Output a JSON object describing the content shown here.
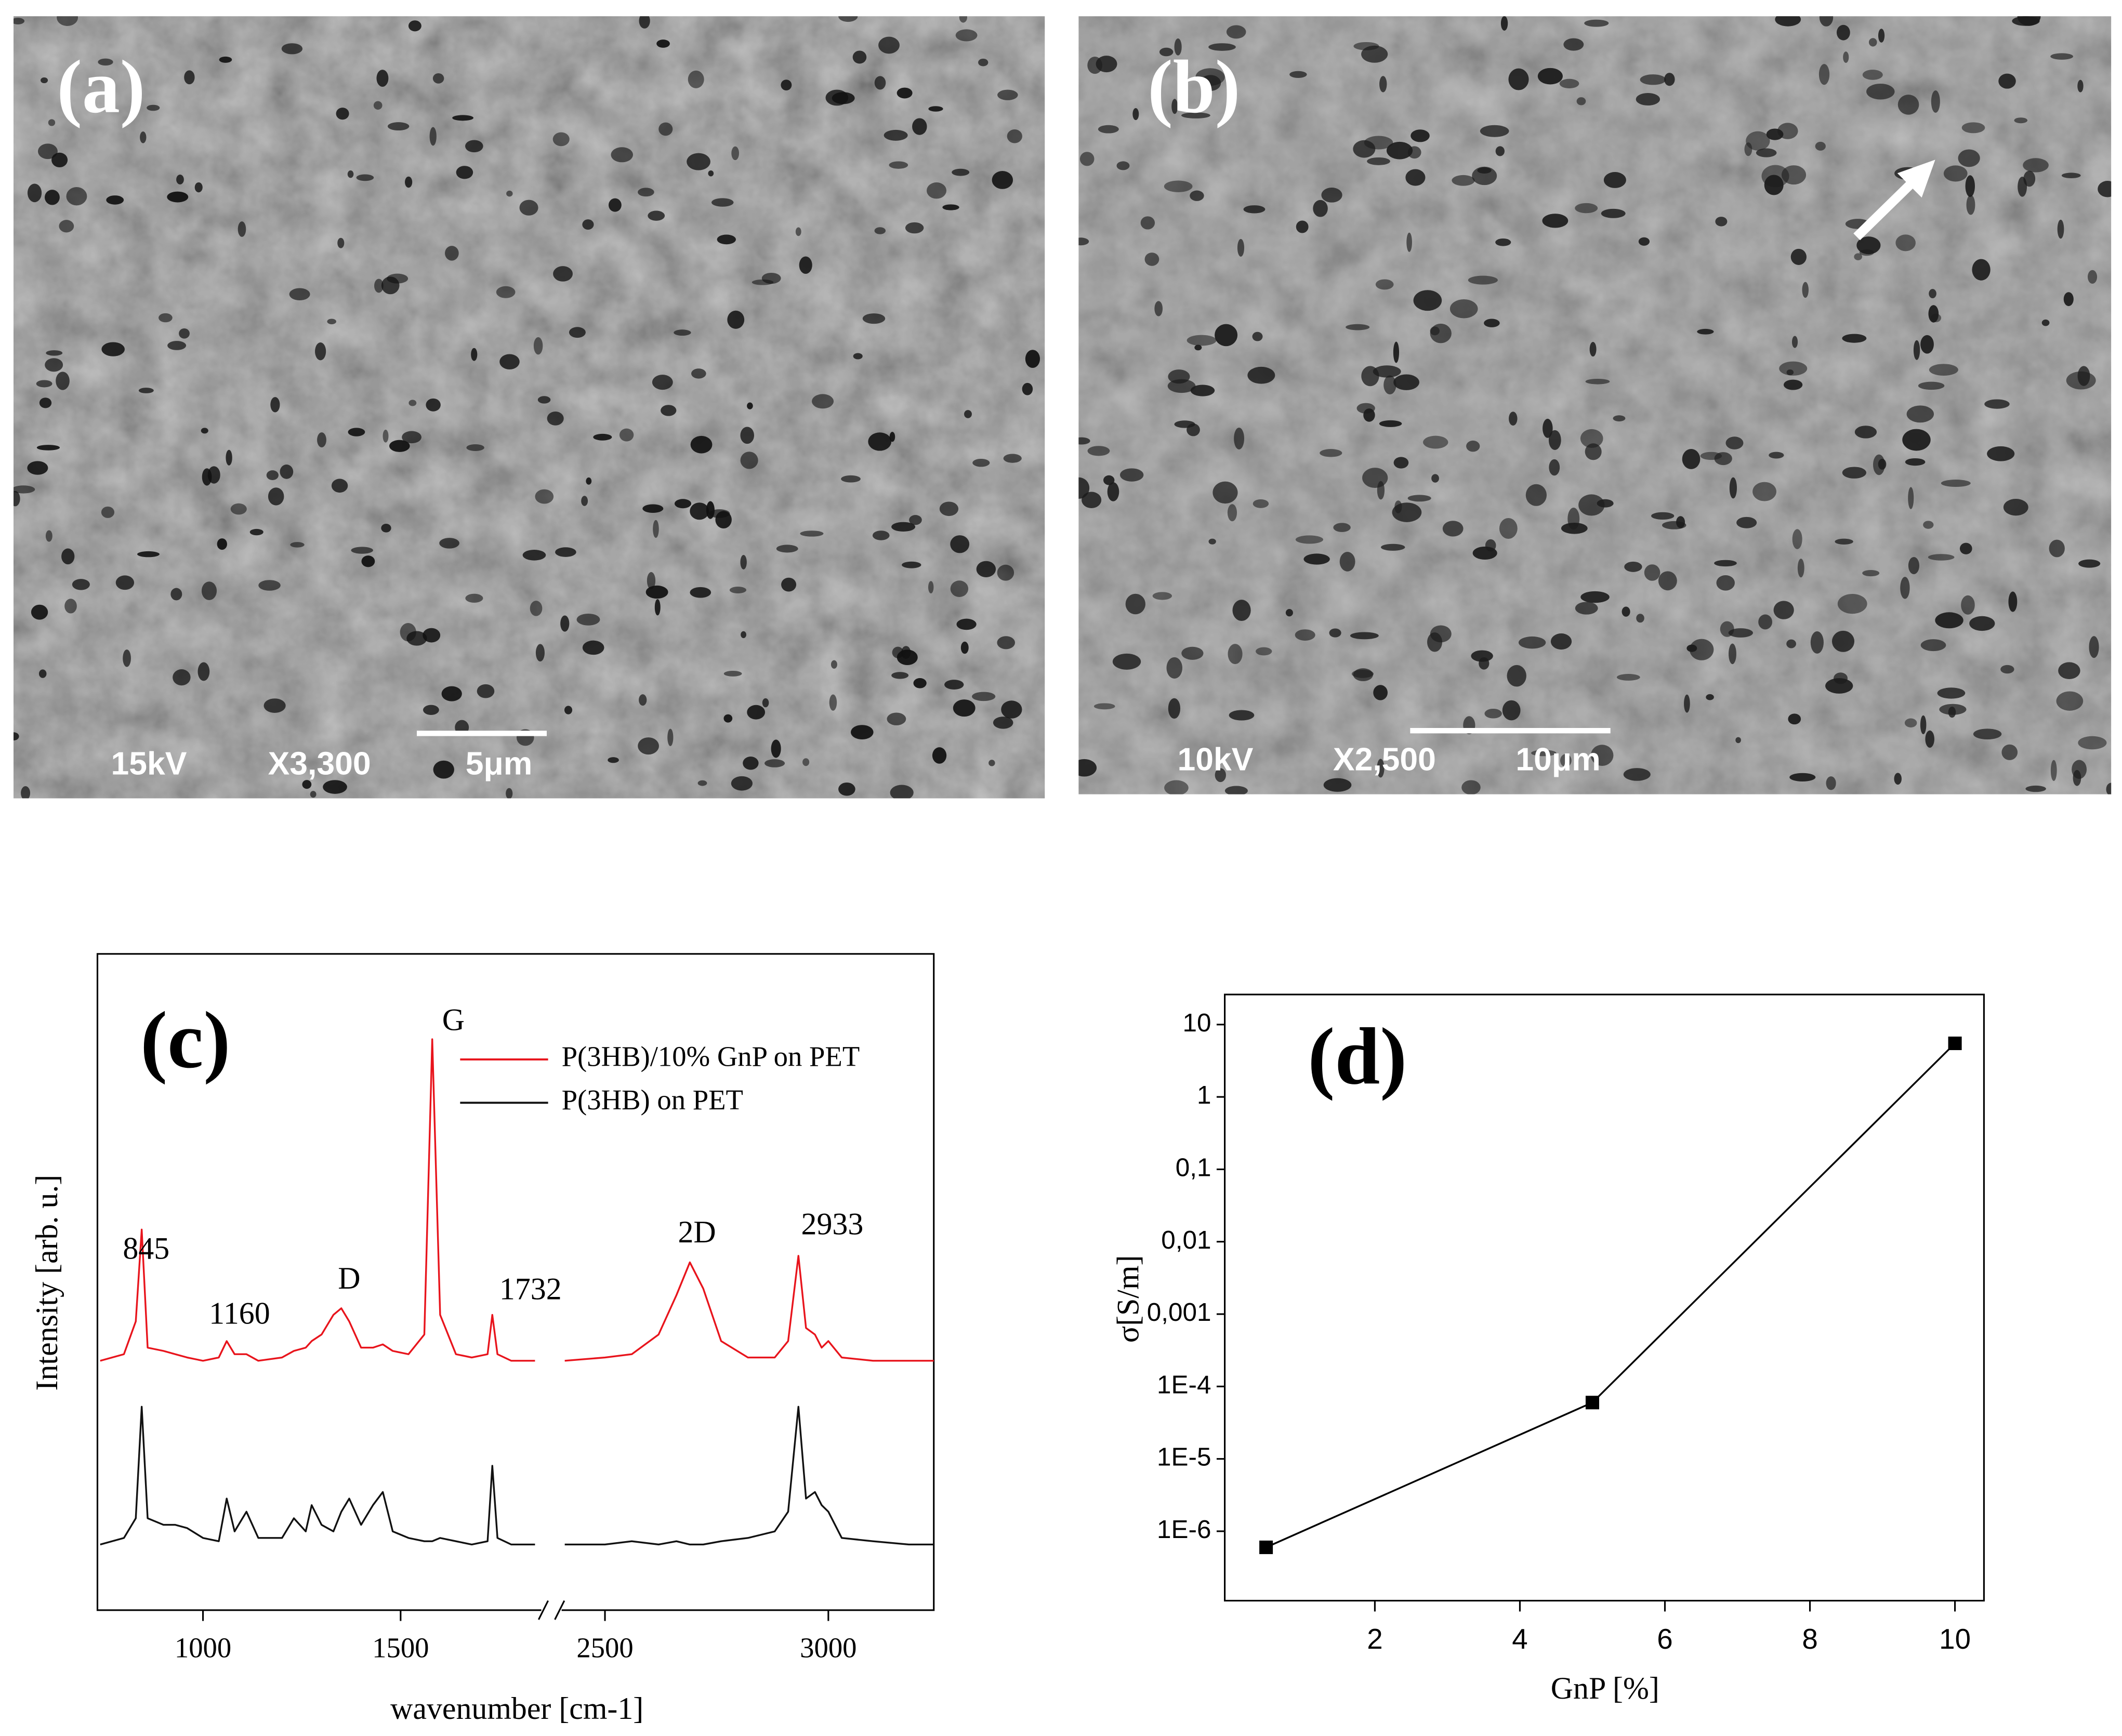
{
  "sem_images": [
    {
      "label": "(a)",
      "voltage": "15kV",
      "magnification": "X3,300",
      "scale_bar": "5μm"
    },
    {
      "label": "(b)",
      "voltage": "10kV",
      "magnification": "X2,500",
      "scale_bar": "10μm"
    }
  ],
  "chart_data": [
    {
      "type": "line",
      "panel_label": "(c)",
      "x_label": "wavenumber [cm-1]",
      "y_label": "Intensity [arb. u.]",
      "x": [
        740,
        800,
        830,
        845,
        860,
        900,
        930,
        960,
        1000,
        1040,
        1060,
        1080,
        1110,
        1140,
        1200,
        1230,
        1260,
        1275,
        1300,
        1330,
        1350,
        1370,
        1400,
        1430,
        1455,
        1480,
        1520,
        1560,
        1580,
        1600,
        1640,
        1680,
        1720,
        1732,
        1745,
        1780,
        1840,
        2100,
        2410,
        2500,
        2560,
        2620,
        2660,
        2690,
        2720,
        2760,
        2820,
        2880,
        2910,
        2933,
        2950,
        2970,
        2985,
        3000,
        3030,
        3100,
        3180,
        3236
      ],
      "series": [
        {
          "name": "P(3HB)/10% GnP on PET",
          "color": "#e8141c",
          "values": [
            38,
            39,
            44,
            58,
            40,
            39.5,
            39,
            38.5,
            38,
            38.5,
            41,
            39,
            39,
            38,
            38.5,
            39.5,
            40,
            41,
            42,
            45,
            46,
            44,
            40,
            40,
            40.5,
            39.5,
            39,
            42,
            87,
            45,
            39,
            38.5,
            39,
            45,
            39,
            38,
            38,
            null,
            38,
            38.5,
            39,
            42,
            48,
            53,
            49,
            41,
            38.5,
            38.5,
            41,
            54,
            43,
            42,
            40,
            41,
            38.5,
            38,
            38,
            38
          ]
        },
        {
          "name": "P(3HB) on PET",
          "color": "#111111",
          "values": [
            10,
            11,
            14,
            31,
            14,
            13,
            13,
            12.5,
            11,
            10.5,
            17,
            12,
            15,
            11,
            11,
            14,
            12,
            16,
            13,
            12,
            15,
            17,
            13,
            16,
            18,
            12,
            11,
            10.5,
            10.5,
            11,
            10.5,
            10,
            10.5,
            22,
            11,
            10,
            10,
            null,
            10,
            10,
            10.5,
            10,
            10.5,
            10,
            10,
            10.5,
            11,
            12,
            15,
            31,
            17,
            18,
            16,
            15,
            11,
            10.5,
            10,
            10
          ]
        }
      ],
      "annotations": [
        "845",
        "1160",
        "D",
        "G",
        "1732",
        "2D",
        "2933"
      ],
      "xlim": [
        733,
        3236
      ],
      "x_break": [
        1856,
        2403
      ],
      "xticks": [
        1000,
        1500,
        2500,
        3000
      ],
      "ylim": [
        0,
        100
      ],
      "grid": false,
      "legend": "top-right",
      "marker": "none",
      "log_y": false
    },
    {
      "type": "line",
      "panel_label": "(d)",
      "x_label": "GnP [%]",
      "y_label": "σ[S/m]",
      "x": [
        0.5,
        5,
        10
      ],
      "series": [
        {
          "color": "#000000",
          "values": [
            6e-07,
            6e-05,
            5.5
          ]
        }
      ],
      "xlim": [
        -0.07,
        10.4
      ],
      "xticks": [
        2,
        4,
        6,
        8,
        10
      ],
      "ylim": [
        1.1e-07,
        26
      ],
      "log_y": true,
      "grid": false,
      "marker": "square",
      "yticks": [
        10,
        1,
        {
          "value": 0.1,
          "label": "0,1"
        },
        {
          "value": 0.01,
          "label": "0,01"
        },
        {
          "value": 0.001,
          "label": "0,001"
        },
        {
          "value": 0.0001,
          "label": "1E-4"
        },
        {
          "value": 1e-05,
          "label": "1E-5"
        },
        {
          "value": 1e-06,
          "label": "1E-6"
        }
      ]
    }
  ]
}
